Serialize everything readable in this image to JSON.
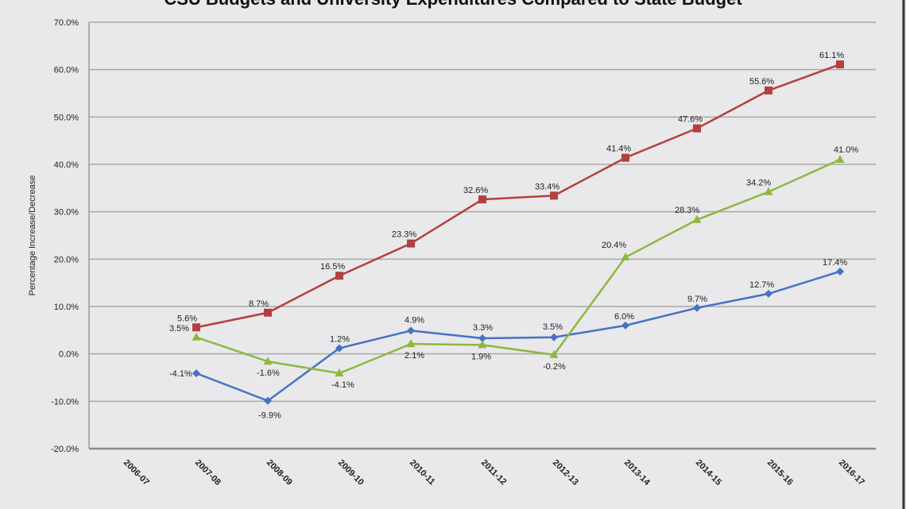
{
  "chart_data": {
    "type": "line",
    "title": "CSU Budgets and University Expenditures Compared to State Budget",
    "xlabel": "",
    "ylabel": "Percentage Increase/Decrease",
    "ylim": [
      -20,
      70
    ],
    "yticks": [
      "-20.0%",
      "-10.0%",
      "0.0%",
      "10.0%",
      "20.0%",
      "30.0%",
      "40.0%",
      "50.0%",
      "60.0%",
      "70.0%"
    ],
    "grid": true,
    "categories": [
      "2006-07",
      "2007-08",
      "2008-09",
      "2009-10",
      "2010-11",
      "2011-12",
      "2012-13",
      "2013-14",
      "2014-15",
      "2015-16",
      "2016-17"
    ],
    "series": [
      {
        "color": "#b3403f",
        "marker": "square",
        "values": [
          null,
          5.6,
          8.7,
          16.5,
          23.3,
          32.6,
          33.4,
          41.4,
          47.6,
          55.6,
          61.1
        ],
        "labels": [
          "",
          "5.6%",
          "8.7%",
          "16.5%",
          "23.3%",
          "32.6%",
          "33.4%",
          "41.4%",
          "47.6%",
          "55.6%",
          "61.1%"
        ]
      },
      {
        "color": "#4472c4",
        "marker": "diamond",
        "values": [
          null,
          -4.1,
          -9.9,
          1.2,
          4.9,
          3.3,
          3.5,
          6.0,
          9.7,
          12.7,
          17.4
        ],
        "labels": [
          "",
          "-4.1%",
          "-9.9%",
          "1.2%",
          "4.9%",
          "3.3%",
          "3.5%",
          "6.0%",
          "9.7%",
          "12.7%",
          "17.4%"
        ]
      },
      {
        "color": "#8db83f",
        "marker": "triangle",
        "values": [
          null,
          3.5,
          -1.6,
          -4.1,
          2.1,
          1.9,
          -0.2,
          20.4,
          28.3,
          34.2,
          41.0
        ],
        "labels": [
          "",
          "3.5%",
          "-1.6%",
          "-4.1%",
          "2.1%",
          "1.9%",
          "-0.2%",
          "20.4%",
          "28.3%",
          "34.2%",
          "41.0%"
        ]
      }
    ]
  }
}
